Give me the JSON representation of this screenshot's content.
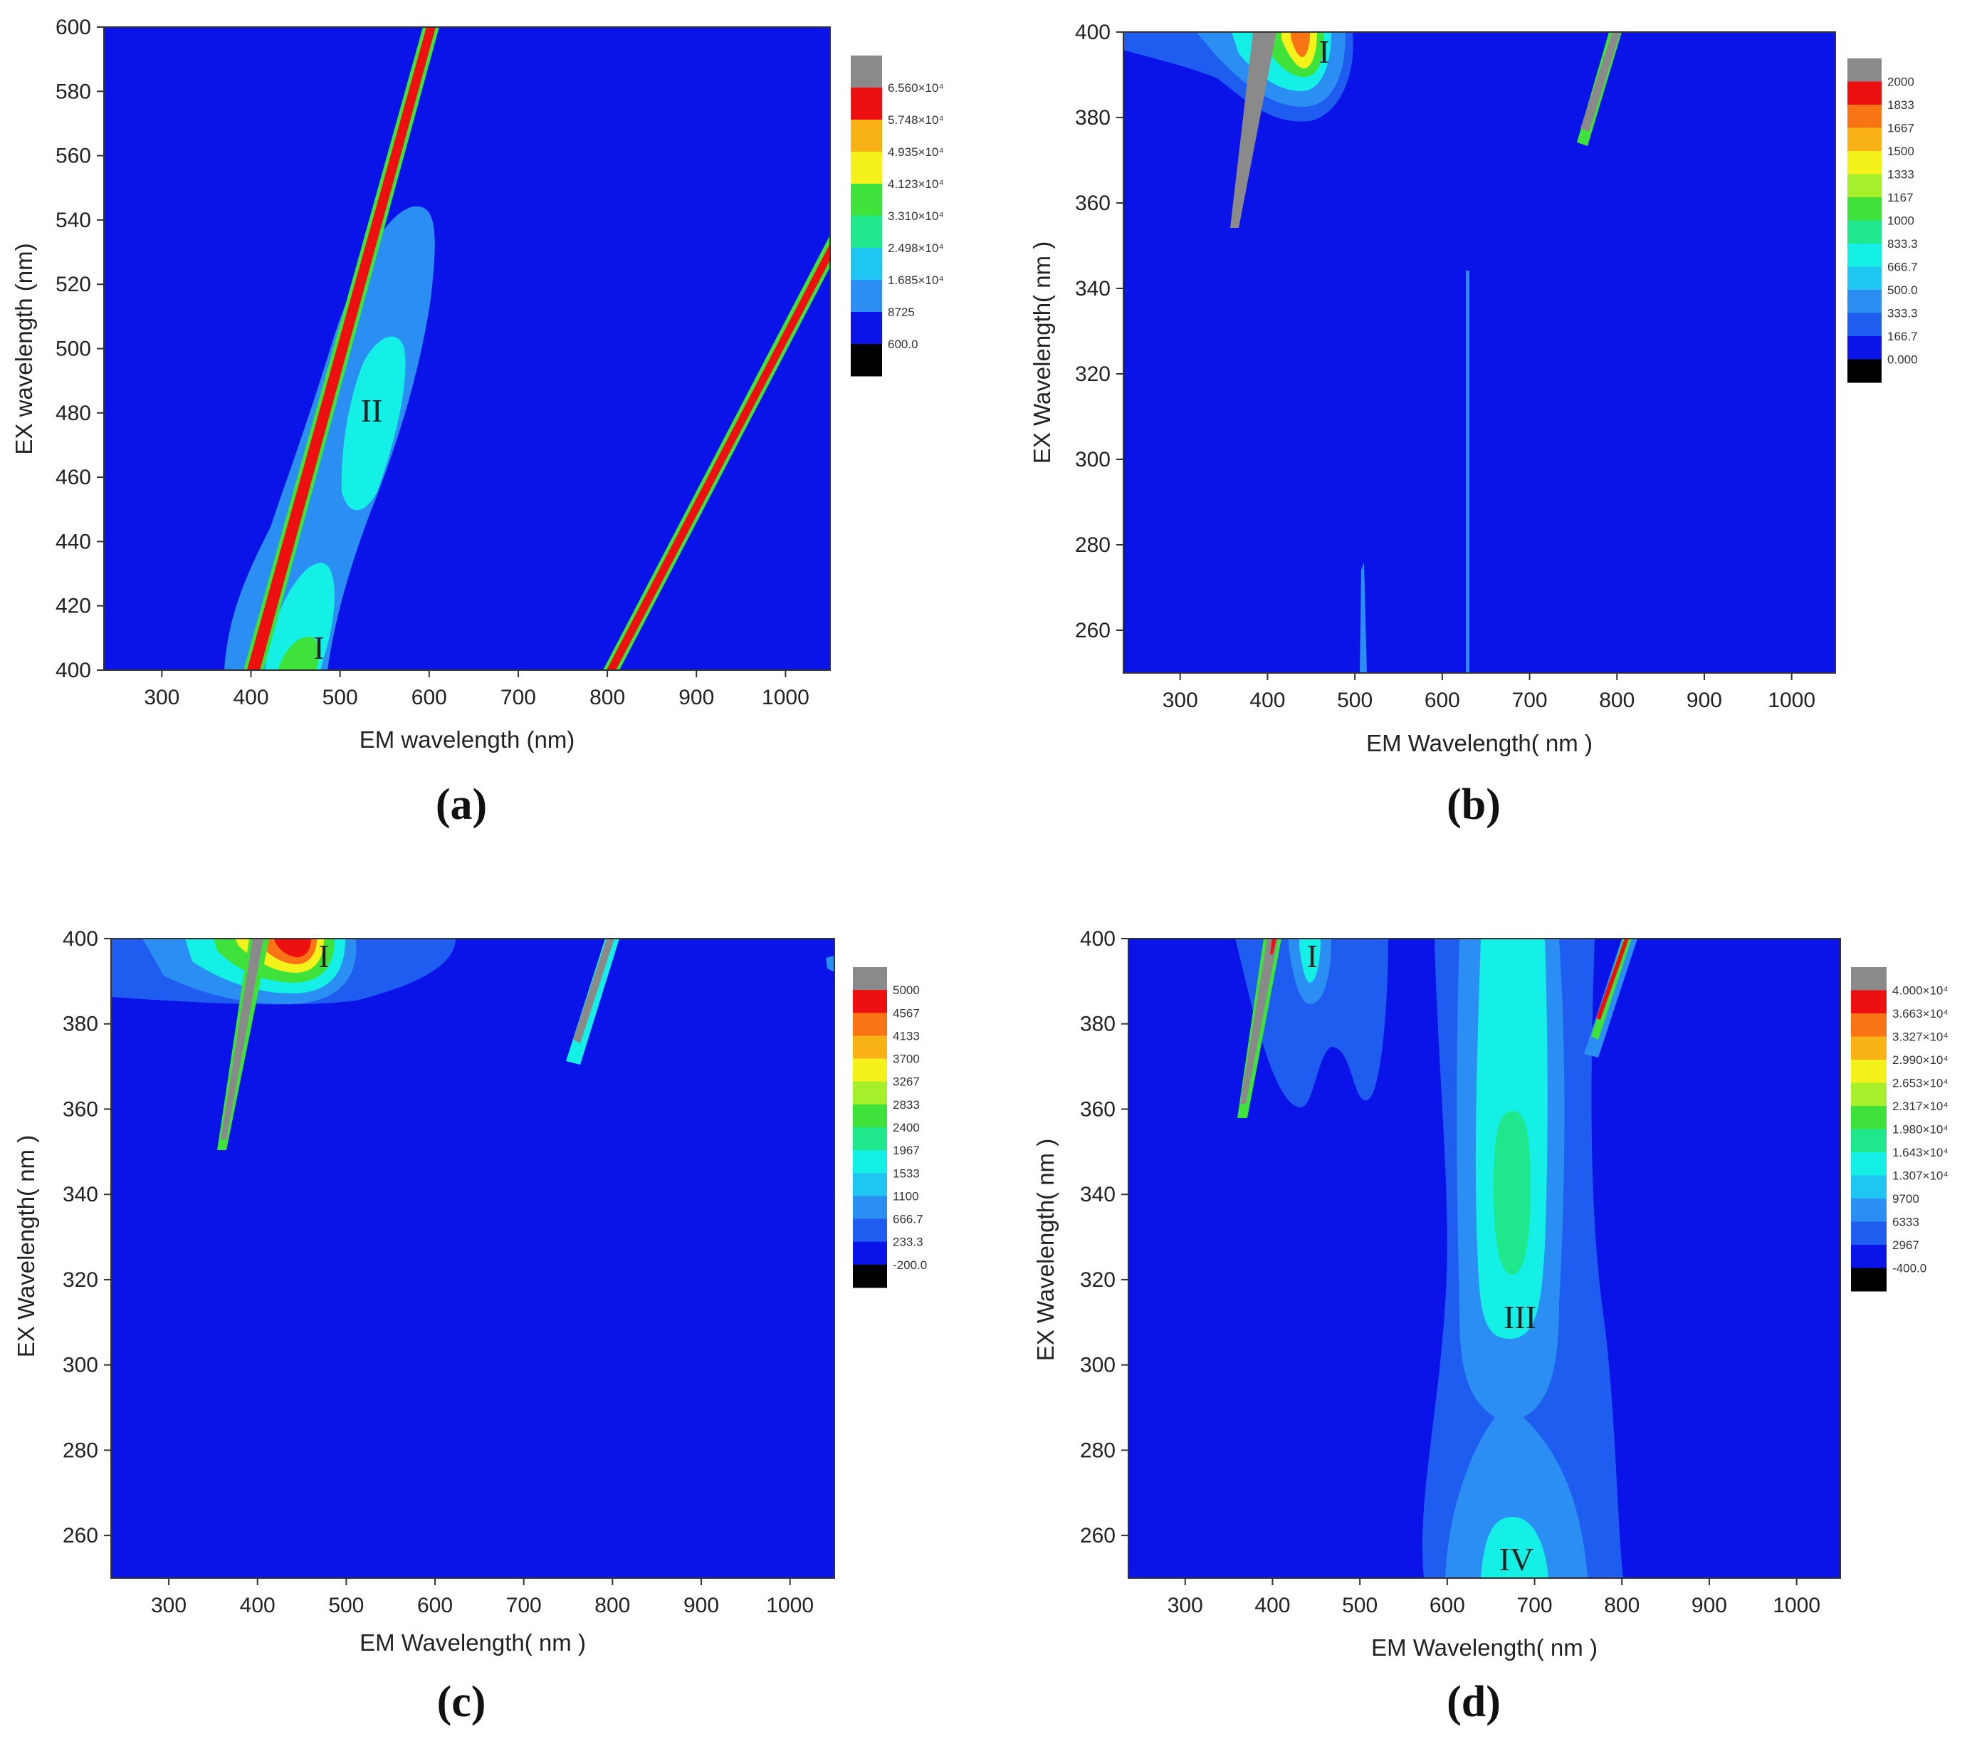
{
  "chart_data": [
    {
      "type": "heatmap",
      "panel_label": "(a)",
      "xlabel": "EM wavelength (nm)",
      "ylabel": "EX wavelength (nm)",
      "xlim": [
        235,
        1050
      ],
      "ylim": [
        400,
        600
      ],
      "xticks": [
        "300",
        "400",
        "500",
        "600",
        "700",
        "800",
        "900",
        "1000"
      ],
      "xtick_values": [
        300,
        400,
        500,
        600,
        700,
        800,
        900,
        1000
      ],
      "yticks": [
        "400",
        "420",
        "440",
        "460",
        "480",
        "500",
        "520",
        "540",
        "560",
        "580",
        "600"
      ],
      "ytick_values": [
        400,
        420,
        440,
        460,
        480,
        500,
        520,
        540,
        560,
        580,
        600
      ],
      "colorbar": [
        "6.560×10⁴",
        "5.748×10⁴",
        "4.935×10⁴",
        "4.123×10⁴",
        "3.310×10⁴",
        "2.498×10⁴",
        "1.685×10⁴",
        "8725",
        "600.0"
      ],
      "regions": [
        {
          "label": "II",
          "em": 525,
          "ex": 481
        },
        {
          "label": "I",
          "em": 475,
          "ex": 406
        }
      ],
      "scatter_lines": [
        {
          "em_start": 400,
          "ex_start": 400,
          "em_end": 605,
          "ex_end": 600
        },
        {
          "em_start": 805,
          "ex_start": 400,
          "em_end": 1050,
          "ex_end": 525
        }
      ]
    },
    {
      "type": "heatmap",
      "panel_label": "(b)",
      "xlabel": "EM Wavelength( nm )",
      "ylabel": "EX Wavelength( nm )",
      "xlim": [
        235,
        1050
      ],
      "ylim": [
        250,
        400
      ],
      "xticks": [
        "300",
        "400",
        "500",
        "600",
        "700",
        "800",
        "900",
        "1000"
      ],
      "xtick_values": [
        300,
        400,
        500,
        600,
        700,
        800,
        900,
        1000
      ],
      "yticks": [
        "260",
        "280",
        "300",
        "320",
        "340",
        "360",
        "380",
        "400"
      ],
      "ytick_values": [
        260,
        280,
        300,
        320,
        340,
        360,
        380,
        400
      ],
      "colorbar": [
        "2000",
        "1833",
        "1667",
        "1500",
        "1333",
        "1167",
        "1000",
        "833.3",
        "666.7",
        "500.0",
        "333.3",
        "166.7",
        "0.000"
      ],
      "regions": [
        {
          "label": "I",
          "em": 450,
          "ex": 396
        }
      ]
    },
    {
      "type": "heatmap",
      "panel_label": "(c)",
      "xlabel": "EM Wavelength( nm )",
      "ylabel": "EX Wavelength( nm )",
      "xlim": [
        235,
        1050
      ],
      "ylim": [
        250,
        400
      ],
      "xticks": [
        "300",
        "400",
        "500",
        "600",
        "700",
        "800",
        "900",
        "1000"
      ],
      "xtick_values": [
        300,
        400,
        500,
        600,
        700,
        800,
        900,
        1000
      ],
      "yticks": [
        "260",
        "280",
        "300",
        "320",
        "340",
        "360",
        "380",
        "400"
      ],
      "ytick_values": [
        260,
        280,
        300,
        320,
        340,
        360,
        380,
        400
      ],
      "colorbar": [
        "5000",
        "4567",
        "4133",
        "3700",
        "3267",
        "2833",
        "2400",
        "1967",
        "1533",
        "1100",
        "666.7",
        "233.3",
        "-200.0"
      ],
      "regions": [
        {
          "label": "I",
          "em": 475,
          "ex": 395
        }
      ]
    },
    {
      "type": "heatmap",
      "panel_label": "(d)",
      "xlabel": "EM Wavelength( nm )",
      "ylabel": "EX Wavelength( nm )",
      "xlim": [
        235,
        1050
      ],
      "ylim": [
        250,
        400
      ],
      "xticks": [
        "300",
        "400",
        "500",
        "600",
        "700",
        "800",
        "900",
        "1000"
      ],
      "xtick_values": [
        300,
        400,
        500,
        600,
        700,
        800,
        900,
        1000
      ],
      "yticks": [
        "260",
        "280",
        "300",
        "320",
        "340",
        "360",
        "380",
        "400"
      ],
      "ytick_values": [
        260,
        280,
        300,
        320,
        340,
        360,
        380,
        400
      ],
      "colorbar": [
        "4.000×10⁴",
        "3.663×10⁴",
        "3.327×10⁴",
        "2.990×10⁴",
        "2.653×10⁴",
        "2.317×10⁴",
        "1.980×10⁴",
        "1.643×10⁴",
        "1.307×10⁴",
        "9700",
        "6333",
        "2967",
        "-400.0"
      ],
      "regions": [
        {
          "label": "I",
          "em": 447,
          "ex": 395
        },
        {
          "label": "III",
          "em": 680,
          "ex": 310
        },
        {
          "label": "IV",
          "em": 680,
          "ex": 254
        }
      ]
    }
  ],
  "colors": {
    "background_blue": "#0a14e8",
    "band1": "#1f5cf0",
    "band2": "#2b8ef2",
    "band3": "#1fc6f2",
    "band4": "#15f0e6",
    "band5": "#1ee78c",
    "band6": "#3fe23a",
    "band7": "#a6f02b",
    "band8": "#f5f21b",
    "band9": "#f8b215",
    "band10": "#f87414",
    "band11": "#ee1010",
    "gray": "#8a8a8a",
    "black": "#000000"
  }
}
